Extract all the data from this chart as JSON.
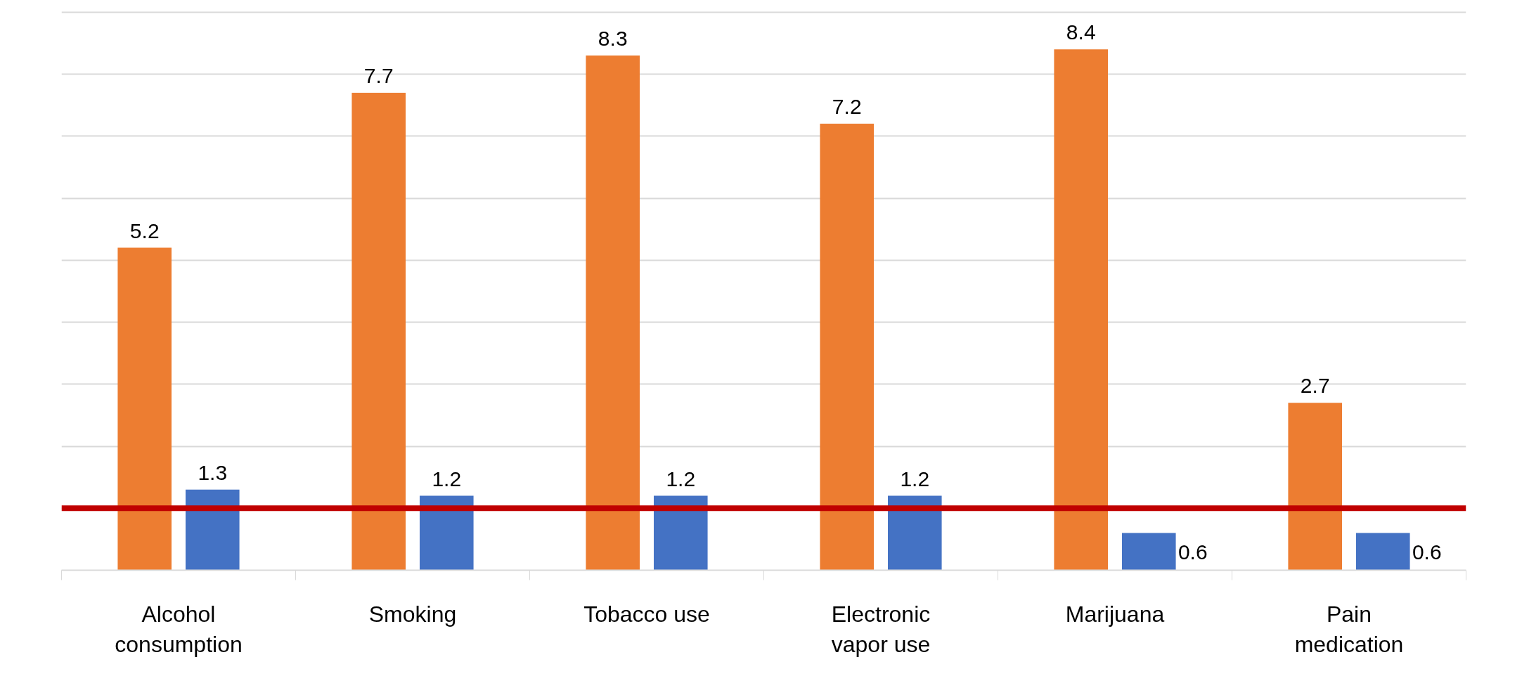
{
  "chart_data": {
    "type": "bar",
    "categories": [
      "Alcohol consumption",
      "Smoking",
      "Tobacco use",
      "Electronic vapor use",
      "Marijuana",
      "Pain medication"
    ],
    "series": [
      {
        "color": "#ed7d31",
        "values": [
          5.2,
          7.7,
          8.3,
          7.2,
          8.4,
          2.7
        ]
      },
      {
        "color": "#4472c4",
        "values": [
          1.3,
          1.2,
          1.2,
          1.2,
          0.6,
          0.6
        ]
      }
    ],
    "yticks": [
      {
        "value": 0,
        "label": null
      },
      {
        "value": 1,
        "label": null
      },
      {
        "value": 2,
        "label": null
      },
      {
        "value": 3,
        "label": null
      },
      {
        "value": 4,
        "label": null
      },
      {
        "value": 5,
        "label": null
      },
      {
        "value": 6,
        "label": null
      },
      {
        "value": 7,
        "label": null
      },
      {
        "value": 8,
        "label": null
      },
      {
        "value": 9,
        "label": null
      }
    ],
    "grid": "y",
    "tick_labels": "x",
    "data_labels": true,
    "ref_lines": [
      {
        "axis": "y",
        "value": 1,
        "color": "#c00000"
      }
    ]
  }
}
